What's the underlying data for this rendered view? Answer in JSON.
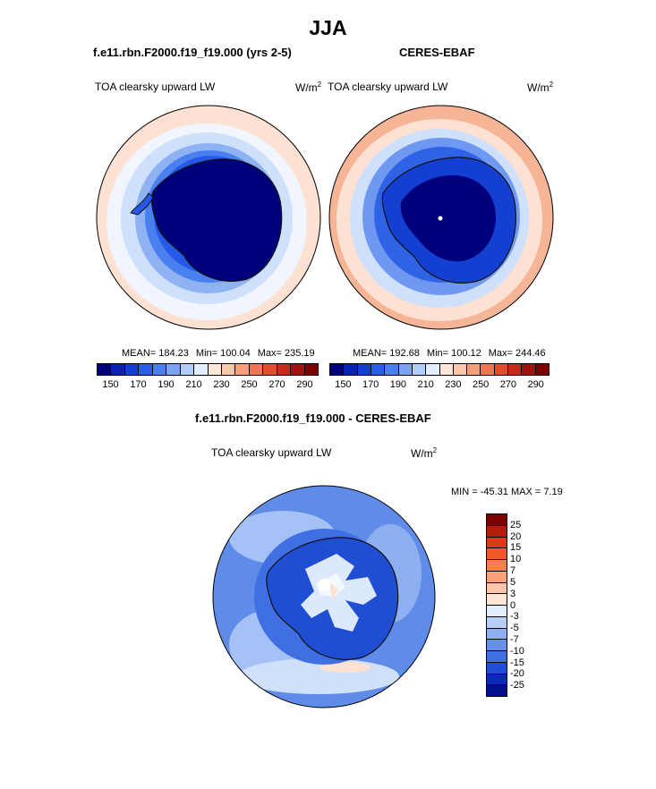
{
  "season": "JJA",
  "panels": [
    {
      "case": "f.e11.rbn.F2000.f19_f19.000 (yrs 2-5)",
      "variable": "TOA clearsky upward LW",
      "units": "W/m",
      "units_sup": "2",
      "mean": "MEAN= 184.23",
      "min": "Min= 100.04",
      "max": "Max= 235.19"
    },
    {
      "case": "CERES-EBAF",
      "variable": "TOA clearsky upward LW",
      "units": "W/m",
      "units_sup": "2",
      "mean": "MEAN= 192.68",
      "min": "Min= 100.12",
      "max": "Max= 244.46"
    }
  ],
  "abs_colorbar": {
    "colors": [
      "#00007d",
      "#0a21b4",
      "#1440d2",
      "#2a5ee8",
      "#4a7ff0",
      "#7ba3f5",
      "#b2cdf9",
      "#e3eefd",
      "#ffe6d9",
      "#fdc7ac",
      "#f99f7c",
      "#f07550",
      "#e34c2c",
      "#c9291a",
      "#a11210",
      "#7d0000"
    ],
    "ticks": [
      "150",
      "170",
      "190",
      "210",
      "230",
      "250",
      "270",
      "290"
    ]
  },
  "diff": {
    "title": "f.e11.rbn.F2000.f19_f19.000 - CERES-EBAF",
    "variable": "TOA clearsky upward LW",
    "units": "W/m",
    "units_sup": "2",
    "minmax": "MIN = -45.31 MAX =   7.19",
    "colorbar": {
      "colors": [
        "#7d0000",
        "#b01e0e",
        "#d93a1a",
        "#f05a2a",
        "#f7804e",
        "#fba27a",
        "#fdc6a8",
        "#fde6d8",
        "#e2eefc",
        "#b8d0f8",
        "#8eb0f3",
        "#6690ec",
        "#3f6fe2",
        "#1f4ed2",
        "#0a2cb4",
        "#00108a"
      ],
      "ticks": [
        "25",
        "20",
        "15",
        "10",
        "7",
        "5",
        "3",
        "0",
        "-3",
        "-5",
        "-7",
        "-10",
        "-15",
        "-20",
        "-25"
      ]
    }
  }
}
